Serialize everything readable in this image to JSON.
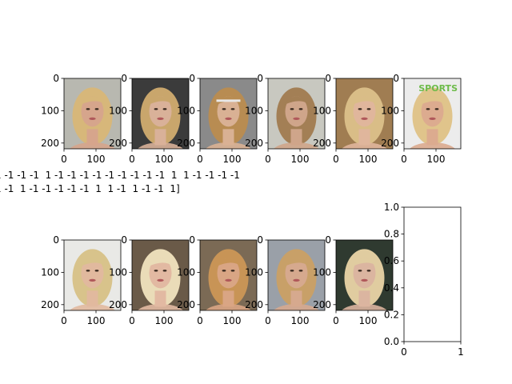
{
  "figure": {
    "background": "#ffffff",
    "array_text": [
      "1 -1 -1 -1  1 -1 -1 -1 -1 -1 -1 -1 -1 -1  1  1 -1 -1 -1 -1",
      "1 -1  1 -1 -1 -1 -1 -1  1  1 -1  1 -1 -1  1]"
    ],
    "image_panels": [
      {
        "subject": "blonde-woman-short-hair",
        "bg": "#b8b8b0",
        "hair": "#d7b77a",
        "skin": "#d6a58c",
        "x_ticks": [
          "0",
          "100"
        ],
        "y_ticks": [
          "0",
          "100",
          "200"
        ]
      },
      {
        "subject": "blonde-woman-long-hair",
        "bg": "#3b3b3b",
        "hair": "#c9a66c",
        "skin": "#d9b199",
        "x_ticks": [
          "0",
          "100"
        ],
        "y_ticks": [
          "0",
          "100",
          "200"
        ]
      },
      {
        "subject": "blonde-woman-headband",
        "bg": "#8a8a8a",
        "hair": "#b88c52",
        "skin": "#d9b194",
        "x_ticks": [
          "0",
          "100"
        ],
        "y_ticks": [
          "0",
          "100",
          "200"
        ]
      },
      {
        "subject": "woman-wavy-hair",
        "bg": "#c8c8c0",
        "hair": "#a37f55",
        "skin": "#cfa58a",
        "x_ticks": [
          "0",
          "100"
        ],
        "y_ticks": [
          "0",
          "100",
          "200"
        ]
      },
      {
        "subject": "blonde-woman-curly-hair",
        "bg": "#a07d52",
        "hair": "#d9bd87",
        "skin": "#e0b69c",
        "x_ticks": [
          "0",
          "100"
        ],
        "y_ticks": [
          "0",
          "100",
          "200"
        ]
      },
      {
        "subject": "blonde-woman-sports-backdrop",
        "bg": "#ececec",
        "hair": "#e0c48b",
        "skin": "#dcab8f",
        "x_ticks": [
          "0",
          "100"
        ],
        "y_ticks": [
          "0",
          "100",
          "200"
        ]
      },
      {
        "subject": "blonde-woman-hand-on-chin",
        "bg": "#e9e9e6",
        "hair": "#d8c38b",
        "skin": "#e1b99e",
        "x_ticks": [
          "0",
          "100"
        ],
        "y_ticks": [
          "0",
          "100",
          "200"
        ]
      },
      {
        "subject": "platinum-blonde-woman",
        "bg": "#6a5a48",
        "hair": "#eadcb8",
        "skin": "#e2b9a2",
        "x_ticks": [
          "0",
          "100"
        ],
        "y_ticks": [
          "0",
          "100",
          "200"
        ]
      },
      {
        "subject": "strawberry-blonde-woman",
        "bg": "#7b6a55",
        "hair": "#c89456",
        "skin": "#d9a584",
        "x_ticks": [
          "0",
          "100"
        ],
        "y_ticks": [
          "0",
          "100",
          "200"
        ]
      },
      {
        "subject": "blonde-woman-event-backdrop",
        "bg": "#9aa0a8",
        "hair": "#c8a068",
        "skin": "#d6a98e",
        "x_ticks": [
          "0",
          "100"
        ],
        "y_ticks": [
          "0",
          "100",
          "200"
        ]
      },
      {
        "subject": "blonde-woman-dark-backdrop",
        "bg": "#2f3a30",
        "hair": "#e0cca0",
        "skin": "#dbb5a0",
        "x_ticks": [
          "0",
          "100"
        ],
        "y_ticks": [
          "0",
          "100",
          "200"
        ]
      }
    ],
    "empty_axes": {
      "x_ticks": [
        "0",
        "1"
      ],
      "y_ticks": [
        "0.0",
        "0.2",
        "0.4",
        "0.6",
        "0.8",
        "1.0"
      ]
    },
    "watermark_word": "SPORTS"
  }
}
